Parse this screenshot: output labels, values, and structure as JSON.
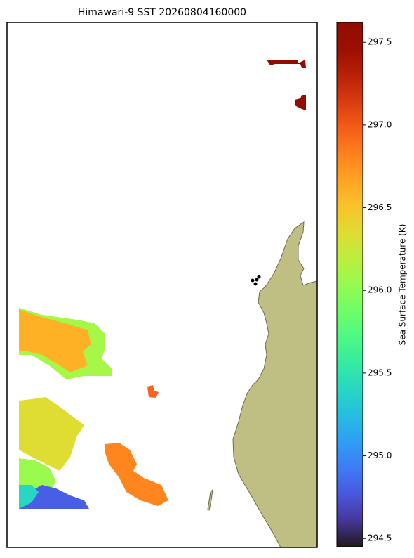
{
  "title": "Himawari-9 SST 20260804160000",
  "colorbar": {
    "label": "Sea Surface Temperature (K)",
    "colormap": "turbo",
    "lim": [
      294.45,
      297.62
    ],
    "ticks": [
      {
        "value": 294.5,
        "label": "294.5"
      },
      {
        "value": 295,
        "label": "295.0"
      },
      {
        "value": 295.5,
        "label": "295.5"
      },
      {
        "value": 296,
        "label": "296.0"
      },
      {
        "value": 296.5,
        "label": "296.5"
      },
      {
        "value": 297,
        "label": "297.0"
      },
      {
        "value": 297.5,
        "label": "297.5"
      }
    ]
  },
  "sst_values": [
    297.55,
    297.55,
    296.1,
    296.6,
    296.95,
    296.35,
    296.05,
    294.8,
    295.4,
    296.8
  ]
}
